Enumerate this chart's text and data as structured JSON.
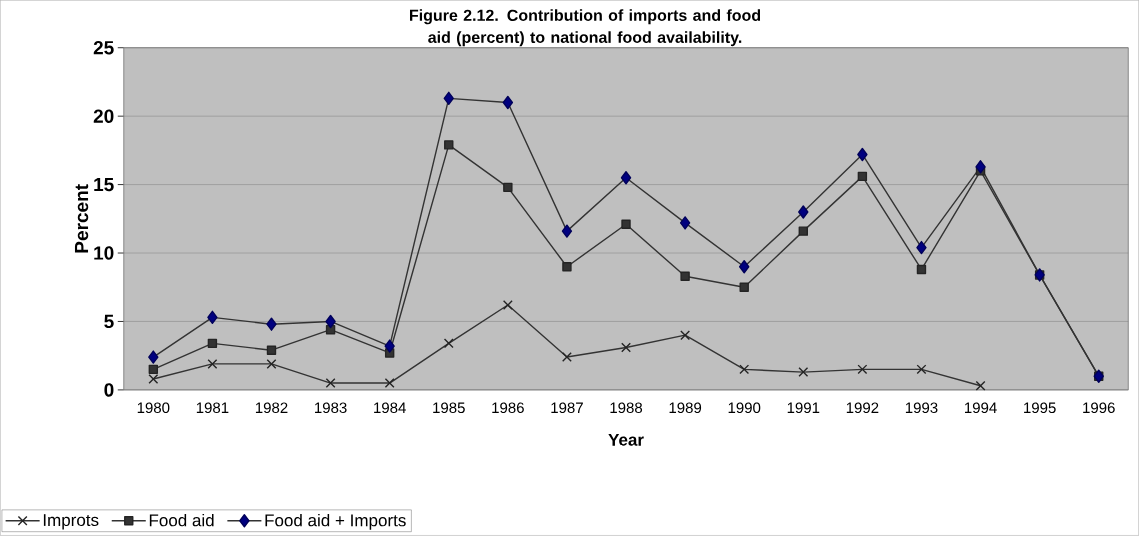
{
  "chart_data": {
    "type": "line",
    "title": "Figure 2.12. Contribution of imports and food aid (percent) to national food availability.",
    "xlabel": "Year",
    "ylabel": "Percent",
    "categories": [
      "1980",
      "1981",
      "1982",
      "1983",
      "1984",
      "1985",
      "1986",
      "1987",
      "1988",
      "1989",
      "1990",
      "1991",
      "1992",
      "1993",
      "1994",
      "1995",
      "1996"
    ],
    "series": [
      {
        "name": "Improts",
        "color": "#333333",
        "marker": "cross",
        "values": [
          0.8,
          1.9,
          1.9,
          0.5,
          0.5,
          3.4,
          6.2,
          2.4,
          3.1,
          4.0,
          1.5,
          1.3,
          1.5,
          1.5,
          0.3,
          null,
          null
        ]
      },
      {
        "name": "Food aid",
        "color": "#333333",
        "marker": "square",
        "values": [
          1.5,
          3.4,
          2.9,
          4.4,
          2.7,
          17.9,
          14.8,
          9.0,
          12.1,
          8.3,
          7.5,
          11.6,
          15.6,
          8.8,
          16.0,
          8.4,
          1.0
        ]
      },
      {
        "name": "Food aid + Imports",
        "color": "#000080",
        "marker": "diamond",
        "values": [
          2.4,
          5.3,
          4.8,
          5.0,
          3.2,
          21.3,
          21.0,
          11.6,
          15.5,
          12.2,
          9.0,
          13.0,
          17.2,
          10.4,
          16.3,
          8.4,
          1.0
        ]
      }
    ],
    "ylim": [
      0,
      25
    ],
    "yticks": [
      0,
      5,
      10,
      15,
      20,
      25
    ],
    "grid": "y",
    "legend": "bottom left"
  }
}
